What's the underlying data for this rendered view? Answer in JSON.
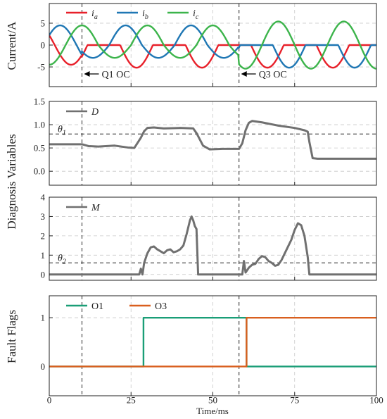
{
  "figure": {
    "x_label": "Time/ms",
    "shared_y_label": "Diagnosis Variables",
    "x_ticks": [
      "0",
      "25",
      "50",
      "75",
      "100"
    ]
  },
  "chart_data": [
    {
      "type": "line",
      "ylabel": "Current/A",
      "xlim": [
        0,
        100
      ],
      "ylim": [
        -9.5,
        9.5
      ],
      "yticks": [
        "-5",
        "0",
        "5"
      ],
      "grid": true,
      "legend": "top-left",
      "series": [
        {
          "name": "i",
          "sub": "a",
          "color": "#e8202a"
        },
        {
          "name": "i",
          "sub": "b",
          "color": "#1f77b4"
        },
        {
          "name": "i",
          "sub": "c",
          "color": "#3cb44b"
        }
      ],
      "waveform": {
        "amplitude": 4.5,
        "period_ms": 20,
        "phase_a_deg": 150
      },
      "events": [
        {
          "x": 10,
          "label": "Q1 OC"
        },
        {
          "x": 58,
          "label": "Q3 OC"
        }
      ]
    },
    {
      "type": "line",
      "xlim": [
        0,
        100
      ],
      "ylim": [
        -0.3,
        1.5
      ],
      "yticks": [
        "0.0",
        "0.5",
        "1.0",
        "1.5"
      ],
      "grid": true,
      "threshold": {
        "label": "θ",
        "sub": "1",
        "value": 0.8
      },
      "series": [
        {
          "name": "D",
          "color": "#707070",
          "points": [
            [
              0,
              0.58
            ],
            [
              10,
              0.58
            ],
            [
              12,
              0.54
            ],
            [
              15,
              0.53
            ],
            [
              20,
              0.55
            ],
            [
              24,
              0.51
            ],
            [
              26,
              0.5
            ],
            [
              28,
              0.72
            ],
            [
              29,
              0.86
            ],
            [
              30,
              0.93
            ],
            [
              32,
              0.94
            ],
            [
              35,
              0.92
            ],
            [
              40,
              0.93
            ],
            [
              44,
              0.92
            ],
            [
              45,
              0.82
            ],
            [
              47,
              0.55
            ],
            [
              49,
              0.47
            ],
            [
              53,
              0.48
            ],
            [
              58,
              0.48
            ],
            [
              59,
              0.6
            ],
            [
              60,
              0.88
            ],
            [
              61,
              1.04
            ],
            [
              62,
              1.08
            ],
            [
              65,
              1.05
            ],
            [
              70,
              0.98
            ],
            [
              75,
              0.93
            ],
            [
              78,
              0.88
            ],
            [
              79,
              0.85
            ],
            [
              79.5,
              0.63
            ],
            [
              80.5,
              0.28
            ],
            [
              82,
              0.27
            ],
            [
              100,
              0.27
            ]
          ]
        }
      ]
    },
    {
      "type": "line",
      "xlim": [
        0,
        100
      ],
      "ylim": [
        -0.3,
        4.0
      ],
      "yticks": [
        "0",
        "1",
        "2",
        "3",
        "4"
      ],
      "grid": true,
      "threshold": {
        "label": "θ",
        "sub": "2",
        "value": 0.6
      },
      "series": [
        {
          "name": "M",
          "color": "#707070",
          "points": [
            [
              0,
              0
            ],
            [
              27.5,
              0
            ],
            [
              28,
              0.3
            ],
            [
              28.5,
              0
            ],
            [
              29,
              0.6
            ],
            [
              30,
              1.1
            ],
            [
              31,
              1.4
            ],
            [
              32,
              1.45
            ],
            [
              33,
              1.3
            ],
            [
              34,
              1.2
            ],
            [
              35,
              1.1
            ],
            [
              36,
              1.25
            ],
            [
              37,
              1.3
            ],
            [
              38,
              1.15
            ],
            [
              39,
              1.2
            ],
            [
              40,
              1.3
            ],
            [
              41,
              1.5
            ],
            [
              42,
              2.1
            ],
            [
              43,
              2.8
            ],
            [
              43.5,
              3.0
            ],
            [
              44,
              2.8
            ],
            [
              44.5,
              2.5
            ],
            [
              45,
              2.35
            ],
            [
              45.5,
              0
            ],
            [
              59,
              0
            ],
            [
              59.5,
              0.7
            ],
            [
              60,
              0.1
            ],
            [
              61,
              0.35
            ],
            [
              62,
              0.5
            ],
            [
              63,
              0.55
            ],
            [
              64,
              0.8
            ],
            [
              65,
              0.95
            ],
            [
              66,
              0.9
            ],
            [
              67,
              0.7
            ],
            [
              68,
              0.6
            ],
            [
              69,
              0.45
            ],
            [
              70,
              0.5
            ],
            [
              71,
              0.75
            ],
            [
              72,
              1.1
            ],
            [
              74,
              1.8
            ],
            [
              75,
              2.3
            ],
            [
              76,
              2.65
            ],
            [
              77,
              2.55
            ],
            [
              78,
              2.0
            ],
            [
              79,
              0.9
            ],
            [
              79.5,
              0
            ],
            [
              100,
              0
            ]
          ]
        }
      ]
    },
    {
      "type": "line",
      "ylabel": "Fault Flags",
      "xlim": [
        0,
        100
      ],
      "ylim": [
        -0.6,
        1.45
      ],
      "yticks": [
        "0",
        "1"
      ],
      "grid": true,
      "legend": "top-left",
      "series": [
        {
          "name": "O1",
          "color": "#1a9e77",
          "points": [
            [
              0,
              0
            ],
            [
              28.8,
              0
            ],
            [
              28.8,
              1
            ],
            [
              60.3,
              1
            ],
            [
              60.3,
              0
            ],
            [
              100,
              0
            ]
          ]
        },
        {
          "name": "O3",
          "color": "#d95f1e",
          "points": [
            [
              0,
              0
            ],
            [
              60.3,
              0
            ],
            [
              60.3,
              1
            ],
            [
              100,
              1
            ]
          ]
        }
      ]
    }
  ]
}
